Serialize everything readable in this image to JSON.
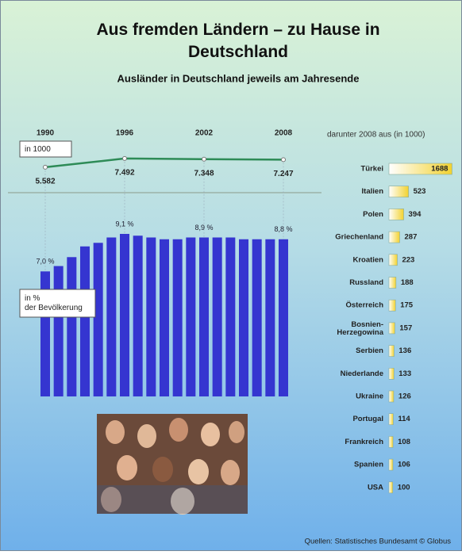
{
  "title": "Aus fremden Ländern – zu Hause in Deutschland",
  "subtitle": "Ausländer in Deutschland jeweils am Jahresende",
  "source": "Quellen: Statistisches Bundesamt   © Globus",
  "chart_data": [
    {
      "type": "line",
      "label": "in 1000",
      "x": [
        1990,
        1996,
        2002,
        2008
      ],
      "values": [
        5582,
        7492,
        7348,
        7247
      ],
      "value_labels": [
        "5.582",
        "7.492",
        "7.348",
        "7.247"
      ],
      "xlim": [
        1990,
        2008
      ],
      "ylim": [
        0,
        8000
      ],
      "color": "#2e8b57"
    },
    {
      "type": "bar",
      "label": "in % der Bevölkerung",
      "x": [
        1990,
        1991,
        1992,
        1993,
        1994,
        1995,
        1996,
        1997,
        1998,
        1999,
        2000,
        2001,
        2002,
        2003,
        2004,
        2005,
        2006,
        2007,
        2008
      ],
      "values": [
        7.0,
        7.3,
        7.8,
        8.4,
        8.6,
        8.9,
        9.1,
        9.0,
        8.9,
        8.8,
        8.8,
        8.9,
        8.9,
        8.9,
        8.9,
        8.8,
        8.8,
        8.8,
        8.8
      ],
      "value_labels": [
        "7,0 %",
        null,
        null,
        null,
        null,
        null,
        "9,1 %",
        null,
        null,
        null,
        null,
        null,
        "8,9 %",
        null,
        null,
        null,
        null,
        null,
        "8,8 %"
      ],
      "xlim": [
        1990,
        2008
      ],
      "ylim": [
        0,
        9.5
      ],
      "color": "#3535d0"
    },
    {
      "type": "hbar",
      "title": "darunter 2008 aus (in 1000)",
      "categories": [
        "Türkei",
        "Italien",
        "Polen",
        "Griechenland",
        "Kroatien",
        "Russland",
        "Österreich",
        "Bosnien-\nHerzegowina",
        "Serbien",
        "Niederlande",
        "Ukraine",
        "Portugal",
        "Frankreich",
        "Spanien",
        "USA"
      ],
      "values": [
        1688,
        523,
        394,
        287,
        223,
        188,
        175,
        157,
        136,
        133,
        126,
        114,
        108,
        106,
        100
      ],
      "xlim": [
        0,
        1700
      ],
      "color": "#f2d230"
    }
  ]
}
